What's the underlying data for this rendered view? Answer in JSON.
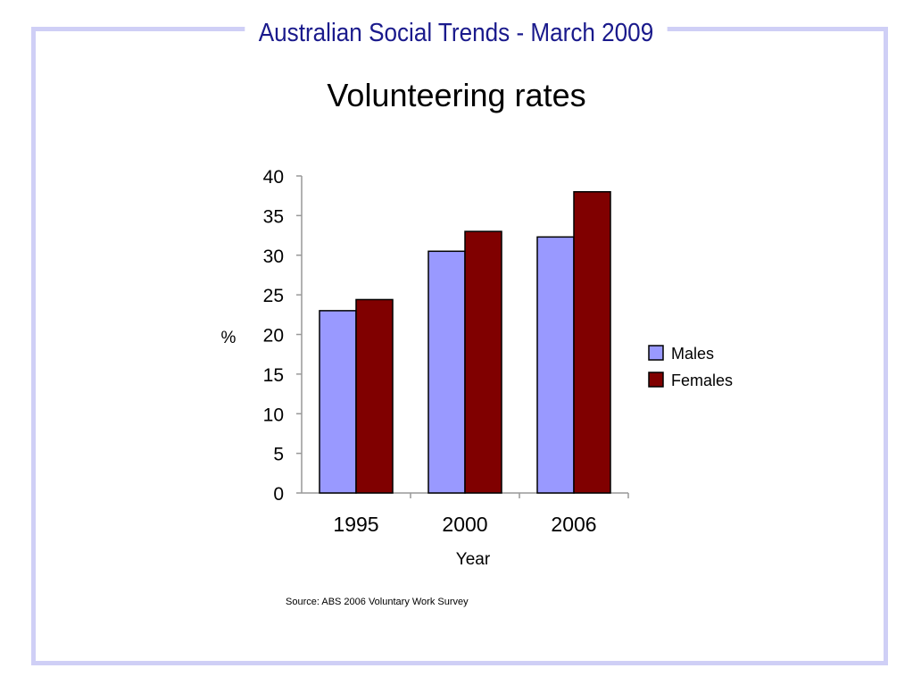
{
  "slide": {
    "header_title": "Australian Social Trends - March 2009",
    "source_note": "Source: ABS 2006 Voluntary Work Survey",
    "frame_color": "#cfcff6",
    "header_color": "#1a1a8c"
  },
  "chart_data": {
    "type": "bar",
    "title": "Volunteering rates",
    "xlabel": "Year",
    "ylabel": "%",
    "categories": [
      "1995",
      "2000",
      "2006"
    ],
    "series": [
      {
        "name": "Males",
        "values": [
          23,
          30.5,
          32.3
        ],
        "color": "#9999ff"
      },
      {
        "name": "Females",
        "values": [
          24.4,
          33,
          38
        ],
        "color": "#800000"
      }
    ],
    "ylim": [
      0,
      40
    ],
    "yticks": [
      0,
      5,
      10,
      15,
      20,
      25,
      30,
      35,
      40
    ],
    "grid": false,
    "legend_position": "right"
  }
}
